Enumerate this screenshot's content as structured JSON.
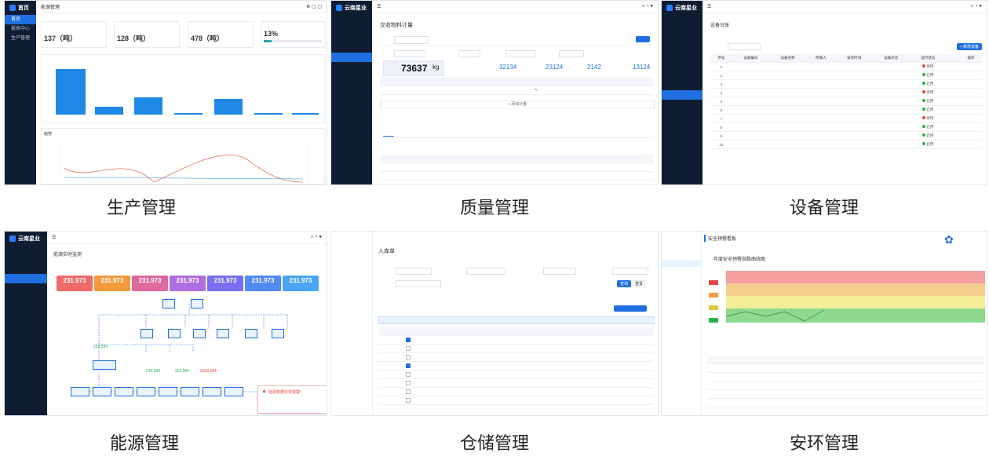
{
  "captions": [
    "生产管理",
    "质量管理",
    "设备管理",
    "能源管理",
    "仓储管理",
    "安环管理"
  ],
  "production": {
    "top_title": "能源管理",
    "nav": [
      "首页",
      "报表中心",
      "生产管理",
      "",
      "",
      "",
      "",
      "",
      "",
      "",
      "",
      "",
      "",
      "",
      "",
      ""
    ],
    "kpis": [
      {
        "label": "",
        "value": "137（吨）"
      },
      {
        "label": "",
        "value": "128（吨）"
      },
      {
        "label": "",
        "value": "478（吨）"
      },
      {
        "label": "",
        "value": "13%"
      }
    ],
    "chart_section_title": "",
    "trend_title": "趋势"
  },
  "quality": {
    "brand": "云南星业",
    "brand_sub": "YUNNAN THE GROUP",
    "page_title": "交收物料计量",
    "input_label": "",
    "query_btn": "",
    "big_value": "73637",
    "big_unit": "kg",
    "stat_values": [
      "32134",
      "23124",
      "2142",
      "13124"
    ],
    "tabs": [
      "",
      ""
    ],
    "add_row": "+ 添加计量",
    "nav": [
      "",
      "",
      "",
      "",
      "",
      "",
      "",
      "",
      "",
      "",
      "",
      "",
      "",
      ""
    ]
  },
  "equipment": {
    "brand": "云南星业",
    "brand_sub": "YUNNAN THE GROUP",
    "nav": [
      "设备管理",
      "",
      "设备维护管理",
      "",
      "",
      "设备点检",
      "",
      "",
      "",
      "",
      "",
      ""
    ],
    "page_title": "设备台账",
    "new_btn": "+ 新增设备",
    "headers": [
      "序号",
      "设备编号",
      "设备名称",
      "所属人",
      "安装时间",
      "设备状态",
      "运行状态",
      "",
      "",
      "操作"
    ],
    "rows": [
      {
        "no": "1",
        "st": "停用",
        "color": "#e64545"
      },
      {
        "no": "2",
        "st": "启用",
        "color": "#2bb24c"
      },
      {
        "no": "3",
        "st": "启用",
        "color": "#2bb24c"
      },
      {
        "no": "4",
        "st": "停用",
        "color": "#e64545"
      },
      {
        "no": "5",
        "st": "启用",
        "color": "#2bb24c"
      },
      {
        "no": "6",
        "st": "启用",
        "color": "#2bb24c"
      },
      {
        "no": "7",
        "st": "停用",
        "color": "#e64545"
      },
      {
        "no": "8",
        "st": "启用",
        "color": "#2bb24c"
      },
      {
        "no": "9",
        "st": "启用",
        "color": "#2bb24c"
      },
      {
        "no": "10",
        "st": "启用",
        "color": "#2bb24c"
      }
    ]
  },
  "energy": {
    "brand": "云南星业",
    "page_title": "能源实时监测",
    "cards": [
      {
        "name": "",
        "value": "231.973",
        "color": "#f06a6a"
      },
      {
        "name": "",
        "value": "231.973",
        "color": "#f39b3c"
      },
      {
        "name": "",
        "value": "231.973",
        "color": "#e0699f"
      },
      {
        "name": "",
        "value": "231.973",
        "color": "#b06fe0"
      },
      {
        "name": "",
        "value": "231.973",
        "color": "#7a6ff0"
      },
      {
        "name": "",
        "value": "231.973",
        "color": "#4f8af5"
      },
      {
        "name": "",
        "value": "231.973",
        "color": "#4aa5f5"
      }
    ],
    "gauges": [
      "253.584",
      "233.584",
      "253.584",
      "5253.584"
    ],
    "alert": "能源数据异常报警!"
  },
  "warehouse": {
    "page_title": "入库单",
    "search_btn": "查询",
    "reset_btn": "重置",
    "new_btn": "",
    "rows": [
      "",
      "",
      "",
      "",
      "",
      "",
      "",
      ""
    ]
  },
  "safety": {
    "title": "安全预警看板",
    "chart_title": "年度安全预警指数曲线图",
    "bands": [
      "",
      "",
      "",
      ""
    ],
    "table_title": ""
  }
}
